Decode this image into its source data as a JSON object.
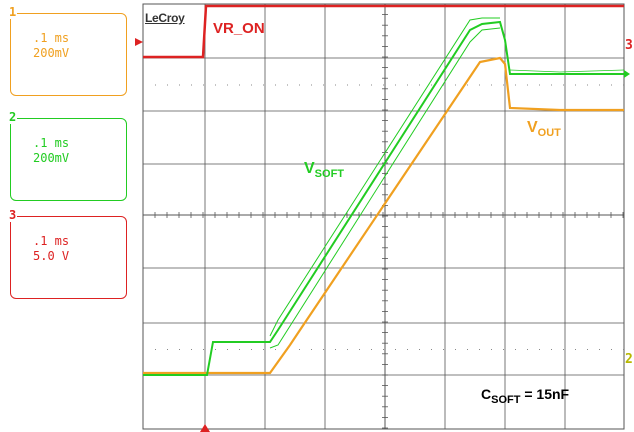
{
  "channels": [
    {
      "number": "1",
      "timebase": ".1 ms",
      "scale": "200mV",
      "color": "#f0a020"
    },
    {
      "number": "2",
      "timebase": ".1 ms",
      "scale": "200mV",
      "color": "#22cc22"
    },
    {
      "number": "3",
      "timebase": ".1 ms",
      "scale": "5.0 V",
      "color": "#dd2222"
    }
  ],
  "brand": "LeCroy",
  "traces": {
    "vr_on": {
      "label": "VR_ON"
    },
    "vsoft": {
      "label_main": "V",
      "label_sub": "SOFT"
    },
    "vout": {
      "label_main": "V",
      "label_sub": "OUT"
    }
  },
  "annotation": {
    "main": "C",
    "sub": "SOFT",
    "rest": " = 15nF"
  },
  "markers": {
    "right_top": "3",
    "right_bottom": "2"
  },
  "colors": {
    "grid": "#555555",
    "ch1": "#f0a020",
    "ch2": "#22cc22",
    "ch3": "#dd2222"
  }
}
